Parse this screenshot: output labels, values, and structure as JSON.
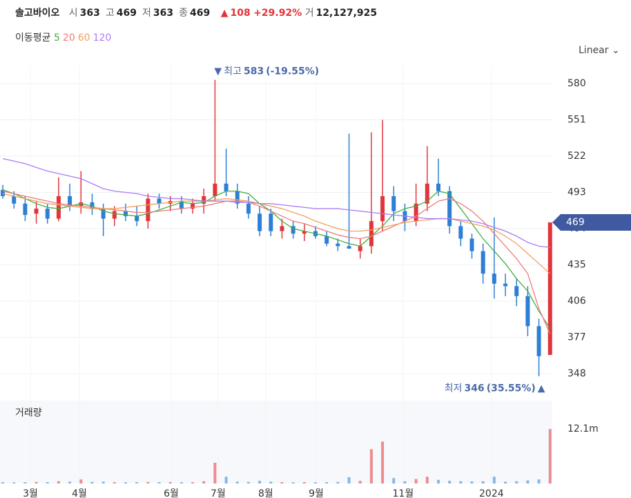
{
  "header": {
    "name": "솔고바이오",
    "fields": [
      {
        "label": "시",
        "value": 363
      },
      {
        "label": "고",
        "value": 469
      },
      {
        "label": "저",
        "value": 363
      },
      {
        "label": "종",
        "value": 469
      }
    ],
    "change": {
      "arrow": "▲",
      "value": 108,
      "pct": "+29.92%"
    },
    "volume": {
      "label": "거",
      "value": "12,127,925"
    }
  },
  "scale_mode": "Linear",
  "chart_data": {
    "type": "candlestick",
    "up_color": "#e2343b",
    "down_color": "#2c7fd4",
    "ylim": [
      329.2,
      594.4
    ],
    "yticks": [
      348,
      377,
      406,
      435,
      464,
      493,
      522,
      551,
      580
    ],
    "grid": true,
    "xlim": [
      -0.25,
      49.2
    ],
    "xticks": [
      {
        "value": 2.47,
        "label": "3월"
      },
      {
        "value": 6.86,
        "label": "4월"
      },
      {
        "value": 15.08,
        "label": "6월"
      },
      {
        "value": 19.28,
        "label": "7월"
      },
      {
        "value": 23.54,
        "label": "8월"
      },
      {
        "value": 28.06,
        "label": "9월"
      },
      {
        "value": 35.84,
        "label": "11월"
      },
      {
        "value": 43.75,
        "label": "2024"
      }
    ],
    "ohlc": [
      [
        495,
        499,
        488,
        490
      ],
      [
        490,
        494,
        480,
        484
      ],
      [
        484,
        490,
        470,
        475
      ],
      [
        476,
        486,
        468,
        480
      ],
      [
        480,
        484,
        468,
        472
      ],
      [
        472,
        505,
        470,
        490
      ],
      [
        490,
        500,
        478,
        482
      ],
      [
        482,
        510,
        476,
        485
      ],
      [
        485,
        492,
        475,
        480
      ],
      [
        480,
        484,
        458,
        472
      ],
      [
        472,
        482,
        466,
        478
      ],
      [
        478,
        484,
        470,
        474
      ],
      [
        474,
        482,
        466,
        470
      ],
      [
        470,
        492,
        464,
        488
      ],
      [
        488,
        492,
        480,
        484
      ],
      [
        484,
        490,
        478,
        486
      ],
      [
        486,
        490,
        476,
        480
      ],
      [
        480,
        488,
        476,
        484
      ],
      [
        484,
        496,
        476,
        490
      ],
      [
        490,
        583,
        486,
        500
      ],
      [
        500,
        528,
        490,
        494
      ],
      [
        494,
        500,
        480,
        484
      ],
      [
        484,
        490,
        472,
        476
      ],
      [
        476,
        482,
        458,
        462
      ],
      [
        476,
        480,
        458,
        462
      ],
      [
        462,
        472,
        456,
        466
      ],
      [
        466,
        470,
        456,
        460
      ],
      [
        460,
        468,
        454,
        462
      ],
      [
        462,
        466,
        456,
        458
      ],
      [
        458,
        462,
        450,
        452
      ],
      [
        452,
        456,
        446,
        450
      ],
      [
        450,
        540,
        448,
        448
      ],
      [
        446,
        456,
        440,
        450
      ],
      [
        450,
        541,
        444,
        470
      ],
      [
        470,
        551,
        462,
        490
      ],
      [
        490,
        498,
        470,
        478
      ],
      [
        478,
        484,
        462,
        470
      ],
      [
        470,
        500,
        466,
        484
      ],
      [
        484,
        530,
        478,
        500
      ],
      [
        500,
        520,
        490,
        494
      ],
      [
        494,
        498,
        460,
        466
      ],
      [
        466,
        470,
        450,
        456
      ],
      [
        456,
        460,
        440,
        446
      ],
      [
        446,
        452,
        420,
        428
      ],
      [
        428,
        473,
        408,
        420
      ],
      [
        420,
        428,
        410,
        418
      ],
      [
        418,
        424,
        402,
        410
      ],
      [
        410,
        418,
        378,
        386
      ],
      [
        386,
        392,
        346,
        362
      ],
      [
        363,
        469,
        363,
        469
      ]
    ],
    "moving_averages": {
      "label": "이동평균",
      "series": [
        {
          "name": "5",
          "color": "#3fae3f",
          "values": [
            495,
            492,
            488,
            484,
            481,
            480,
            482,
            484,
            482,
            478,
            476,
            475,
            474,
            476,
            479,
            482,
            485,
            484,
            485,
            490,
            494,
            494,
            492,
            484,
            478,
            470,
            464,
            462,
            460,
            458,
            455,
            452,
            450,
            458,
            466,
            476,
            480,
            482,
            486,
            494,
            492,
            480,
            468,
            456,
            446,
            436,
            424,
            414,
            398,
            384
          ]
        },
        {
          "name": "20",
          "color": "#ef7a7a",
          "values": [
            494,
            492,
            490,
            488,
            486,
            484,
            483,
            482,
            481,
            480,
            479,
            478,
            477,
            477,
            478,
            479,
            480,
            481,
            482,
            484,
            486,
            486,
            485,
            482,
            478,
            474,
            470,
            468,
            465,
            462,
            459,
            457,
            456,
            458,
            462,
            466,
            470,
            474,
            480,
            486,
            488,
            484,
            478,
            470,
            460,
            450,
            440,
            428,
            400,
            380
          ]
        },
        {
          "name": "60",
          "color": "#f2a05e",
          "values": [
            492,
            490,
            488,
            486,
            484,
            483,
            482,
            481,
            480,
            480,
            480,
            481,
            482,
            483,
            484,
            485,
            486,
            486,
            486,
            487,
            488,
            487,
            486,
            484,
            482,
            480,
            477,
            474,
            470,
            467,
            464,
            462,
            462,
            463,
            465,
            467,
            469,
            470,
            471,
            472,
            472,
            470,
            468,
            466,
            463,
            458,
            452,
            444,
            436,
            428
          ]
        },
        {
          "name": "120",
          "color": "#a97cf5",
          "values": [
            520,
            518,
            516,
            513,
            510,
            508,
            506,
            504,
            500,
            496,
            494,
            493,
            492,
            490,
            489,
            488,
            488,
            487,
            486,
            486,
            486,
            485,
            485,
            484,
            484,
            483,
            482,
            481,
            480,
            480,
            480,
            479,
            478,
            477,
            476,
            475,
            474,
            473,
            472,
            472,
            472,
            471,
            470,
            468,
            465,
            462,
            458,
            453,
            450,
            449
          ]
        }
      ]
    },
    "volume": {
      "label": "거래량",
      "ylim": [
        0,
        18400000
      ],
      "yticks": [
        {
          "value": 12100000,
          "label": "12.1m"
        }
      ],
      "values": [
        300000,
        250000,
        280000,
        350000,
        300000,
        500000,
        400000,
        900000,
        350000,
        400000,
        300000,
        280000,
        300000,
        350000,
        300000,
        320000,
        300000,
        280000,
        500000,
        4600000,
        1500000,
        400000,
        350000,
        600000,
        400000,
        300000,
        280000,
        300000,
        260000,
        300000,
        350000,
        1400000,
        600000,
        7600000,
        9300000,
        1200000,
        500000,
        1000000,
        1500000,
        800000,
        600000,
        500000,
        450000,
        500000,
        1500000,
        400000,
        500000,
        700000,
        900000,
        12100000
      ]
    },
    "annotations": {
      "max": {
        "arrow": "▼",
        "text": "최고",
        "value": 583,
        "pct": "(-19.55%)"
      },
      "min": {
        "text": "최저",
        "value": 346,
        "pct": "(35.55%)",
        "arrow": "▲"
      }
    }
  }
}
